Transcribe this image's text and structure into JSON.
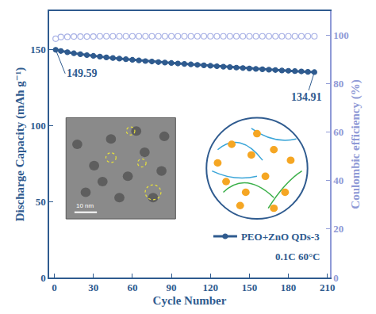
{
  "chart_data": {
    "type": "line",
    "x_label": "Cycle Number",
    "y_label": "Discharge Capacity (mAh g⁻¹)",
    "y2_label": "Coulombic efficiency (%)",
    "x": [
      1,
      5,
      10,
      15,
      20,
      25,
      30,
      35,
      40,
      45,
      50,
      55,
      60,
      65,
      70,
      75,
      80,
      85,
      90,
      95,
      100,
      105,
      110,
      115,
      120,
      125,
      130,
      135,
      140,
      145,
      150,
      155,
      160,
      165,
      170,
      175,
      180,
      185,
      190,
      195,
      200
    ],
    "series": [
      {
        "name": "PEO+ZnO QDs-3",
        "color": "#2f5b8f",
        "marker": "circle",
        "values": [
          149.59,
          148.8,
          148.0,
          147.3,
          146.7,
          146.1,
          145.6,
          145.1,
          144.6,
          144.2,
          143.8,
          143.4,
          143.0,
          142.6,
          142.2,
          141.9,
          141.5,
          141.2,
          140.9,
          140.6,
          140.3,
          140.0,
          139.7,
          139.4,
          139.1,
          138.8,
          138.5,
          138.2,
          137.9,
          137.6,
          137.3,
          137.0,
          136.8,
          136.5,
          136.3,
          136.0,
          135.8,
          135.6,
          135.4,
          135.1,
          134.91
        ]
      },
      {
        "color": "#aab3e6",
        "marker": "circle-open",
        "axis": "y2",
        "values": [
          98.6,
          99.3,
          99.4,
          99.5,
          99.5,
          99.5,
          99.5,
          99.6,
          99.6,
          99.6,
          99.6,
          99.6,
          99.6,
          99.6,
          99.6,
          99.6,
          99.6,
          99.6,
          99.6,
          99.6,
          99.6,
          99.6,
          99.6,
          99.6,
          99.6,
          99.6,
          99.6,
          99.6,
          99.6,
          99.6,
          99.6,
          99.6,
          99.6,
          99.6,
          99.6,
          99.6,
          99.6,
          99.6,
          99.6,
          99.6,
          99.6
        ]
      }
    ],
    "xlim": [
      -4,
      212
    ],
    "xticks": [
      0,
      30,
      60,
      90,
      120,
      150,
      180,
      210
    ],
    "ylim": [
      0,
      175
    ],
    "yticks": [
      0,
      50,
      100,
      150
    ],
    "y2lim": [
      0,
      110
    ],
    "y2ticks": [
      0,
      20,
      40,
      60,
      80,
      100
    ],
    "grid": false,
    "legend": "lower right",
    "annotations": [
      "149.59",
      "134.91",
      "0.1C 60°C",
      "10 nm"
    ]
  }
}
